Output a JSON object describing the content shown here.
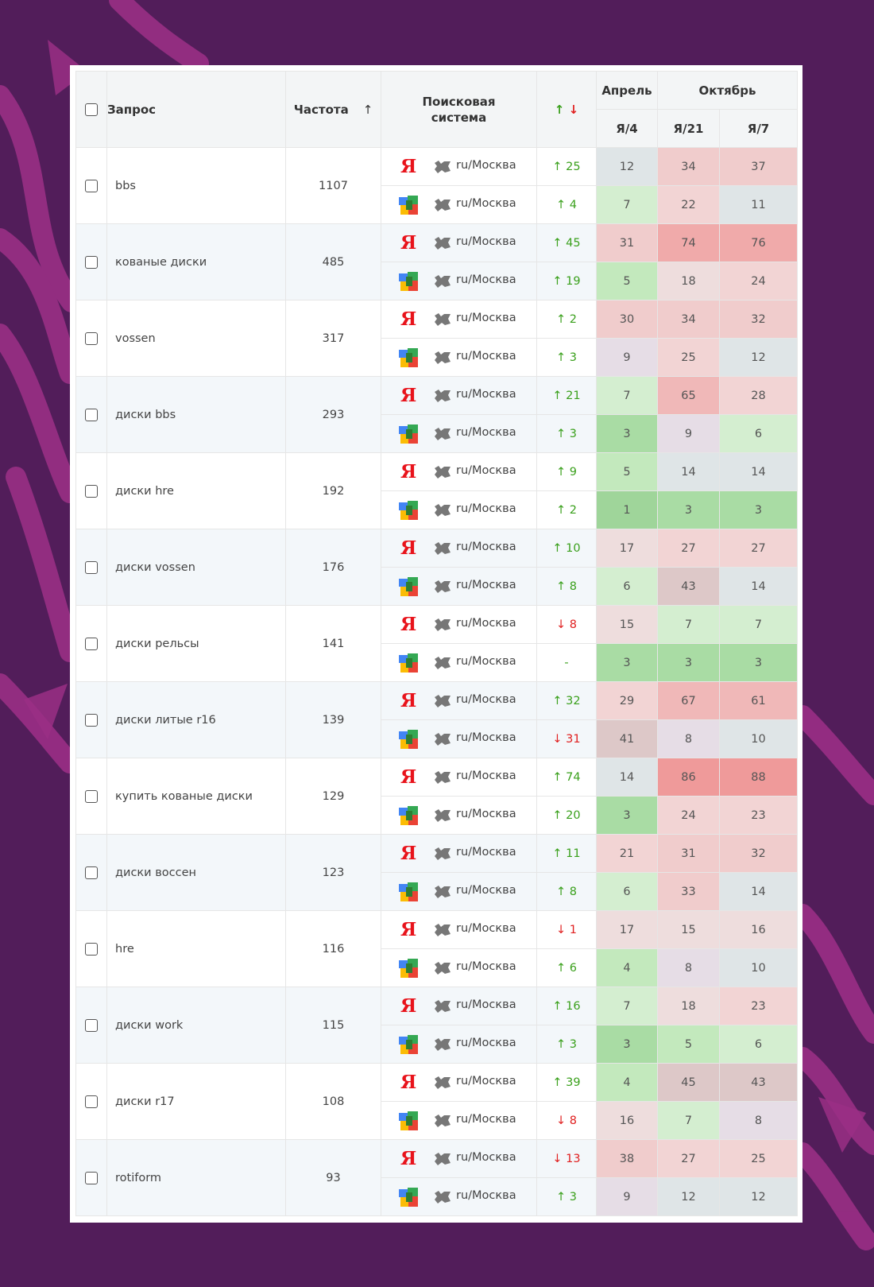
{
  "header": {
    "query": "Запрос",
    "frequency": "Частота",
    "sort_arrow": "↑",
    "engine_line1": "Поисковая",
    "engine_line2": "система",
    "delta_up": "↑",
    "delta_down": "↓",
    "month_april": "Апрель",
    "month_october": "Октябрь",
    "engine_cols": [
      "Я/4",
      "Я/21",
      "Я/7"
    ]
  },
  "region": "ru/Москва",
  "yandex_glyph": "Я",
  "colors": {
    "up": "#3aa01c",
    "down": "#e02020",
    "yandex": "#e8131b"
  },
  "rows": [
    {
      "query": "bbs",
      "frequency": "1107",
      "yandex": {
        "dir": "up",
        "delta": "25",
        "pos": [
          "12",
          "34",
          "37"
        ]
      },
      "google": {
        "dir": "up",
        "delta": "4",
        "pos": [
          "7",
          "22",
          "11"
        ]
      }
    },
    {
      "query": "кованые диски",
      "frequency": "485",
      "yandex": {
        "dir": "up",
        "delta": "45",
        "pos": [
          "31",
          "74",
          "76"
        ]
      },
      "google": {
        "dir": "up",
        "delta": "19",
        "pos": [
          "5",
          "18",
          "24"
        ]
      }
    },
    {
      "query": "vossen",
      "frequency": "317",
      "yandex": {
        "dir": "up",
        "delta": "2",
        "pos": [
          "30",
          "34",
          "32"
        ]
      },
      "google": {
        "dir": "up",
        "delta": "3",
        "pos": [
          "9",
          "25",
          "12"
        ]
      }
    },
    {
      "query": "диски bbs",
      "frequency": "293",
      "yandex": {
        "dir": "up",
        "delta": "21",
        "pos": [
          "7",
          "65",
          "28"
        ]
      },
      "google": {
        "dir": "up",
        "delta": "3",
        "pos": [
          "3",
          "9",
          "6"
        ]
      }
    },
    {
      "query": "диски hre",
      "frequency": "192",
      "yandex": {
        "dir": "up",
        "delta": "9",
        "pos": [
          "5",
          "14",
          "14"
        ]
      },
      "google": {
        "dir": "up",
        "delta": "2",
        "pos": [
          "1",
          "3",
          "3"
        ]
      }
    },
    {
      "query": "диски vossen",
      "frequency": "176",
      "yandex": {
        "dir": "up",
        "delta": "10",
        "pos": [
          "17",
          "27",
          "27"
        ]
      },
      "google": {
        "dir": "up",
        "delta": "8",
        "pos": [
          "6",
          "43",
          "14"
        ]
      }
    },
    {
      "query": "диски рельсы",
      "frequency": "141",
      "yandex": {
        "dir": "down",
        "delta": "8",
        "pos": [
          "15",
          "7",
          "7"
        ]
      },
      "google": {
        "dir": "none",
        "delta": "-",
        "pos": [
          "3",
          "3",
          "3"
        ]
      }
    },
    {
      "query": "диски литые r16",
      "frequency": "139",
      "yandex": {
        "dir": "up",
        "delta": "32",
        "pos": [
          "29",
          "67",
          "61"
        ]
      },
      "google": {
        "dir": "down",
        "delta": "31",
        "pos": [
          "41",
          "8",
          "10"
        ]
      }
    },
    {
      "query": "купить кованые диски",
      "frequency": "129",
      "yandex": {
        "dir": "up",
        "delta": "74",
        "pos": [
          "14",
          "86",
          "88"
        ]
      },
      "google": {
        "dir": "up",
        "delta": "20",
        "pos": [
          "3",
          "24",
          "23"
        ]
      }
    },
    {
      "query": "диски воссен",
      "frequency": "123",
      "yandex": {
        "dir": "up",
        "delta": "11",
        "pos": [
          "21",
          "31",
          "32"
        ]
      },
      "google": {
        "dir": "up",
        "delta": "8",
        "pos": [
          "6",
          "33",
          "14"
        ]
      }
    },
    {
      "query": "hre",
      "frequency": "116",
      "yandex": {
        "dir": "down",
        "delta": "1",
        "pos": [
          "17",
          "15",
          "16"
        ]
      },
      "google": {
        "dir": "up",
        "delta": "6",
        "pos": [
          "4",
          "8",
          "10"
        ]
      }
    },
    {
      "query": "диски work",
      "frequency": "115",
      "yandex": {
        "dir": "up",
        "delta": "16",
        "pos": [
          "7",
          "18",
          "23"
        ]
      },
      "google": {
        "dir": "up",
        "delta": "3",
        "pos": [
          "3",
          "5",
          "6"
        ]
      }
    },
    {
      "query": "диски r17",
      "frequency": "108",
      "yandex": {
        "dir": "up",
        "delta": "39",
        "pos": [
          "4",
          "45",
          "43"
        ]
      },
      "google": {
        "dir": "down",
        "delta": "8",
        "pos": [
          "16",
          "7",
          "8"
        ]
      }
    },
    {
      "query": "rotiform",
      "frequency": "93",
      "yandex": {
        "dir": "down",
        "delta": "13",
        "pos": [
          "38",
          "27",
          "25"
        ]
      },
      "google": {
        "dir": "up",
        "delta": "3",
        "pos": [
          "9",
          "12",
          "12"
        ]
      }
    }
  ]
}
